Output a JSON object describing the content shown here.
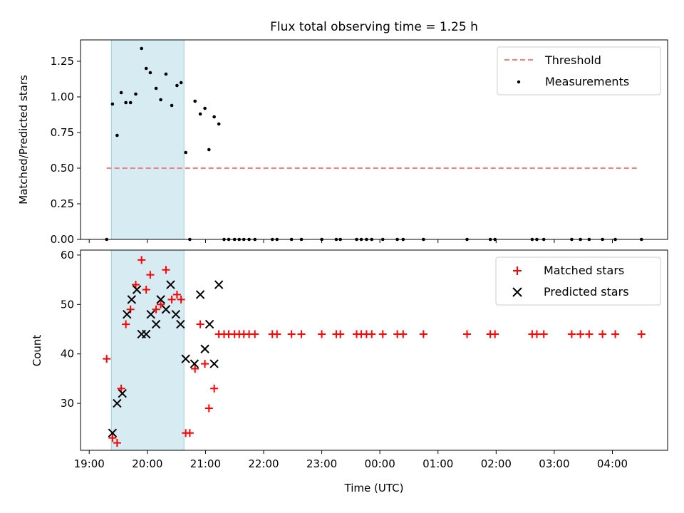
{
  "title": "Flux total observing time = 1.25 h",
  "xlabel": "Time (UTC)",
  "x_tick_labels": [
    "19:00",
    "20:00",
    "21:00",
    "22:00",
    "23:00",
    "00:00",
    "01:00",
    "02:00",
    "03:00",
    "04:00"
  ],
  "colors": {
    "threshold": "#f47f7f",
    "matched": "#ff0000",
    "predicted": "#000000",
    "measure": "#000000",
    "span": "#add8e6"
  },
  "chart_data": [
    {
      "type": "scatter",
      "ylabel": "Matched/Predicted stars",
      "ylim": [
        0,
        1.4
      ],
      "y_ticks": [
        "0.00",
        "0.25",
        "0.50",
        "0.75",
        "1.00",
        "1.25"
      ],
      "x_range_hours_from_19": [
        -0.15,
        9.95
      ],
      "highlight_span_hours": [
        0.38,
        1.63
      ],
      "threshold": {
        "name": "Threshold",
        "value": 0.5,
        "x_range": [
          0.3,
          9.45
        ]
      },
      "legend": {
        "position": "top-right",
        "entries": [
          "Threshold",
          "Measurements"
        ]
      },
      "series": [
        {
          "name": "Measurements",
          "points": [
            [
              0.3,
              0.0
            ],
            [
              0.4,
              0.95
            ],
            [
              0.48,
              0.73
            ],
            [
              0.55,
              1.03
            ],
            [
              0.63,
              0.96
            ],
            [
              0.71,
              0.96
            ],
            [
              0.8,
              1.02
            ],
            [
              0.9,
              1.34
            ],
            [
              0.98,
              1.2
            ],
            [
              1.05,
              1.17
            ],
            [
              1.15,
              1.06
            ],
            [
              1.23,
              0.98
            ],
            [
              1.32,
              1.16
            ],
            [
              1.42,
              0.94
            ],
            [
              1.51,
              1.08
            ],
            [
              1.58,
              1.1
            ],
            [
              1.66,
              0.61
            ],
            [
              1.73,
              0.0
            ],
            [
              1.82,
              0.97
            ],
            [
              1.91,
              0.88
            ],
            [
              1.99,
              0.92
            ],
            [
              2.06,
              0.63
            ],
            [
              2.15,
              0.86
            ],
            [
              2.23,
              0.81
            ],
            [
              2.32,
              0.0
            ],
            [
              2.4,
              0.0
            ],
            [
              2.5,
              0.0
            ],
            [
              2.58,
              0.0
            ],
            [
              2.66,
              0.0
            ],
            [
              2.75,
              0.0
            ],
            [
              2.85,
              0.0
            ],
            [
              3.15,
              0.0
            ],
            [
              3.23,
              0.0
            ],
            [
              3.48,
              0.0
            ],
            [
              3.65,
              0.0
            ],
            [
              4.0,
              0.0
            ],
            [
              4.25,
              0.0
            ],
            [
              4.32,
              0.0
            ],
            [
              4.6,
              0.0
            ],
            [
              4.68,
              0.0
            ],
            [
              4.77,
              0.0
            ],
            [
              4.86,
              0.0
            ],
            [
              5.05,
              0.0
            ],
            [
              5.3,
              0.0
            ],
            [
              5.4,
              0.0
            ],
            [
              5.75,
              0.0
            ],
            [
              6.5,
              0.0
            ],
            [
              6.9,
              0.0
            ],
            [
              6.98,
              0.0
            ],
            [
              7.62,
              0.0
            ],
            [
              7.7,
              0.0
            ],
            [
              7.82,
              0.0
            ],
            [
              8.3,
              0.0
            ],
            [
              8.45,
              0.0
            ],
            [
              8.6,
              0.0
            ],
            [
              8.83,
              0.0
            ],
            [
              9.05,
              0.0
            ],
            [
              9.5,
              0.0
            ]
          ]
        }
      ]
    },
    {
      "type": "scatter",
      "ylabel": "Count",
      "ylim": [
        20.5,
        61
      ],
      "y_ticks": [
        "30",
        "40",
        "50",
        "60"
      ],
      "legend": {
        "position": "top-right",
        "entries": [
          "Matched stars",
          "Predicted stars"
        ]
      },
      "series": [
        {
          "name": "Matched stars",
          "marker": "plus",
          "points": [
            [
              0.3,
              39
            ],
            [
              0.4,
              23
            ],
            [
              0.48,
              22
            ],
            [
              0.55,
              33
            ],
            [
              0.63,
              46
            ],
            [
              0.71,
              49
            ],
            [
              0.8,
              54
            ],
            [
              0.9,
              59
            ],
            [
              0.98,
              53
            ],
            [
              1.05,
              56
            ],
            [
              1.15,
              49
            ],
            [
              1.23,
              50
            ],
            [
              1.32,
              57
            ],
            [
              1.42,
              51
            ],
            [
              1.51,
              52
            ],
            [
              1.58,
              51
            ],
            [
              1.66,
              24
            ],
            [
              1.73,
              24
            ],
            [
              1.82,
              37
            ],
            [
              1.91,
              46
            ],
            [
              1.99,
              38
            ],
            [
              2.06,
              29
            ],
            [
              2.15,
              33
            ],
            [
              2.23,
              44
            ],
            [
              2.32,
              44
            ],
            [
              2.4,
              44
            ],
            [
              2.5,
              44
            ],
            [
              2.58,
              44
            ],
            [
              2.66,
              44
            ],
            [
              2.75,
              44
            ],
            [
              2.85,
              44
            ],
            [
              3.15,
              44
            ],
            [
              3.23,
              44
            ],
            [
              3.48,
              44
            ],
            [
              3.65,
              44
            ],
            [
              4.0,
              44
            ],
            [
              4.25,
              44
            ],
            [
              4.32,
              44
            ],
            [
              4.6,
              44
            ],
            [
              4.68,
              44
            ],
            [
              4.77,
              44
            ],
            [
              4.86,
              44
            ],
            [
              5.05,
              44
            ],
            [
              5.3,
              44
            ],
            [
              5.4,
              44
            ],
            [
              5.75,
              44
            ],
            [
              6.5,
              44
            ],
            [
              6.9,
              44
            ],
            [
              6.98,
              44
            ],
            [
              7.62,
              44
            ],
            [
              7.7,
              44
            ],
            [
              7.82,
              44
            ],
            [
              8.3,
              44
            ],
            [
              8.45,
              44
            ],
            [
              8.6,
              44
            ],
            [
              8.83,
              44
            ],
            [
              9.05,
              44
            ],
            [
              9.5,
              44
            ]
          ]
        },
        {
          "name": "Predicted stars",
          "marker": "x",
          "points": [
            [
              0.4,
              24
            ],
            [
              0.48,
              30
            ],
            [
              0.57,
              32
            ],
            [
              0.65,
              48
            ],
            [
              0.73,
              51
            ],
            [
              0.82,
              53
            ],
            [
              0.9,
              44
            ],
            [
              0.98,
              44
            ],
            [
              1.06,
              48
            ],
            [
              1.15,
              46
            ],
            [
              1.23,
              51
            ],
            [
              1.32,
              49
            ],
            [
              1.4,
              54
            ],
            [
              1.49,
              48
            ],
            [
              1.57,
              46
            ],
            [
              1.66,
              39
            ],
            [
              1.81,
              38
            ],
            [
              1.91,
              52
            ],
            [
              1.99,
              41
            ],
            [
              2.07,
              46
            ],
            [
              2.15,
              38
            ],
            [
              2.23,
              54
            ]
          ]
        }
      ]
    }
  ]
}
